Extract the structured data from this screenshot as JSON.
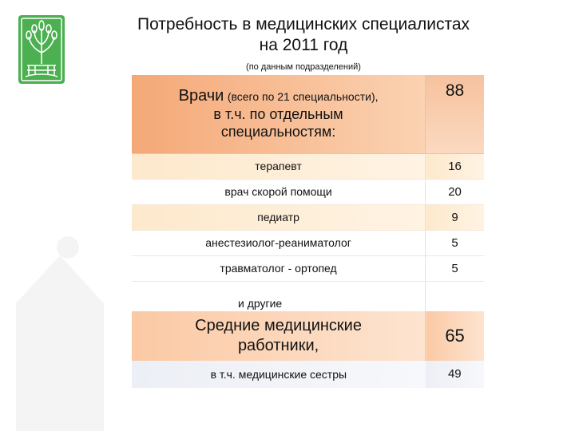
{
  "title_line1": "Потребность в медицинских специалистах",
  "title_line2": "на 2011 год",
  "subtitle": "(по данным подразделений)",
  "doctors": {
    "label_main": "Врачи",
    "label_paren": "(всего по 21 специальности),",
    "label_line2": "в т.ч. по отдельным",
    "label_line3": "специальностям:",
    "value": "88"
  },
  "specialties": [
    {
      "name": "терапевт",
      "value": "16"
    },
    {
      "name": "врач скорой помощи",
      "value": "20"
    },
    {
      "name": "педиатр",
      "value": "9"
    },
    {
      "name": "анестезиолог-реаниматолог",
      "value": "5"
    },
    {
      "name": "травматолог - ортопед",
      "value": "5"
    }
  ],
  "others_label": "и другие",
  "mid_staff": {
    "label_line1": "Средние медицинские",
    "label_line2": "работники,",
    "value": "65"
  },
  "nurses": {
    "label": "в т.ч. медицинские сестры",
    "value": "49"
  },
  "colors": {
    "logo_green": "#4caf50",
    "header_orange": "#f4a877",
    "cream": "#fde9cc"
  }
}
